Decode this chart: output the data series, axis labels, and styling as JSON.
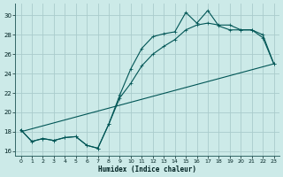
{
  "background_color": "#cceae8",
  "grid_color": "#aacccc",
  "line_color": "#005555",
  "xlabel": "Humidex (Indice chaleur)",
  "xlim": [
    -0.5,
    23.5
  ],
  "ylim": [
    15.5,
    31.2
  ],
  "xticks": [
    0,
    1,
    2,
    3,
    4,
    5,
    6,
    7,
    8,
    9,
    10,
    11,
    12,
    13,
    14,
    15,
    16,
    17,
    18,
    19,
    20,
    21,
    22,
    23
  ],
  "yticks": [
    16,
    18,
    20,
    22,
    24,
    26,
    28,
    30
  ],
  "curve1_x": [
    0,
    1,
    2,
    3,
    4,
    5,
    6,
    7,
    8,
    9,
    10,
    11,
    12,
    13,
    14,
    15,
    16,
    17,
    18,
    19,
    20,
    21,
    22,
    23
  ],
  "curve1_y": [
    18.2,
    17.0,
    17.3,
    17.1,
    17.4,
    17.5,
    16.6,
    16.3,
    18.8,
    21.8,
    24.5,
    26.6,
    27.8,
    28.1,
    28.3,
    30.3,
    29.2,
    30.5,
    28.9,
    28.5,
    28.5,
    28.5,
    27.7,
    25.0
  ],
  "curve2_x": [
    0,
    1,
    2,
    3,
    4,
    5,
    6,
    7,
    8,
    9,
    10,
    11,
    12,
    13,
    14,
    15,
    16,
    17,
    18,
    19,
    20,
    21,
    22,
    23
  ],
  "curve2_y": [
    18.2,
    17.0,
    17.3,
    17.1,
    17.4,
    17.5,
    16.6,
    16.3,
    18.8,
    21.5,
    23.0,
    24.8,
    26.0,
    26.8,
    27.5,
    28.5,
    29.0,
    29.2,
    29.0,
    29.0,
    28.5,
    28.5,
    28.0,
    25.0
  ],
  "curve3_x": [
    0,
    23
  ],
  "curve3_y": [
    18.0,
    25.0
  ]
}
